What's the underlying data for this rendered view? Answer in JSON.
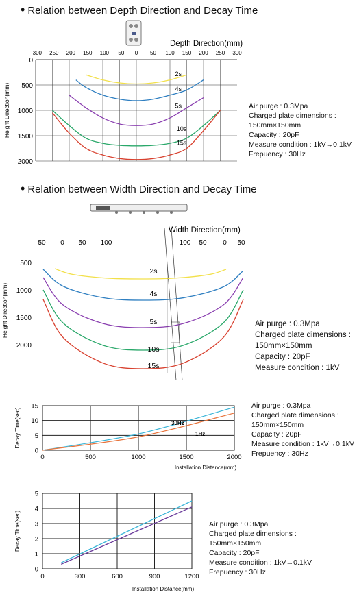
{
  "section1": {
    "title": "Relation between Depth Direction and Decay Time",
    "notes": [
      "Air purge : 0.3Mpa",
      "Charged plate dimensions :",
      "150mm×150mm",
      "Capacity : 20pF",
      "Measure condition : 1kV→0.1kV",
      "Frepuency : 30Hz"
    ]
  },
  "section2": {
    "title": "Relation between Width Direction and Decay Time",
    "notes": [
      "Air purge : 0.3Mpa",
      "Charged plate dimensions :",
      "150mm×150mm",
      "Capacity : 20pF",
      "Measure condition : 1kV"
    ]
  },
  "section3": {
    "notes": [
      "Air purge : 0.3Mpa",
      "Charged plate dimensions :",
      "150mm×150mm",
      "Capacity : 20pF",
      "Measure condition : 1kV→0.1kV",
      "Frepuency : 30Hz"
    ]
  },
  "section4": {
    "notes": [
      "Air purge : 0.3Mpa",
      "Charged plate dimensions :",
      "150mm×150mm",
      "Capacity : 20pF",
      "Measure condition : 1kV→0.1kV",
      "Frepuency : 30Hz"
    ]
  },
  "colors": {
    "2s": "#f2e04a",
    "4s": "#2f7fc1",
    "5s": "#8a3fb0",
    "10s": "#2aa86a",
    "15s": "#d8412f",
    "cyan": "#3ab5d8",
    "orange": "#e8743c",
    "purple": "#6a3a9a"
  },
  "chart_data": [
    {
      "type": "line",
      "xlabel": "Depth Direction(mm)",
      "ylabel": "Height Direction(mm)",
      "xlim": [
        -300,
        300
      ],
      "ylim": [
        0,
        2000
      ],
      "x_ticks": [
        -300,
        -250,
        -200,
        -150,
        -100,
        -50,
        0,
        50,
        100,
        150,
        200,
        250,
        300
      ],
      "y_ticks": [
        0,
        500,
        1000,
        1500,
        2000
      ],
      "y_inverted": true,
      "series": [
        {
          "name": "2s",
          "color_key": "2s",
          "label_x": 125,
          "label_y": 270,
          "points": [
            [
              -150,
              300
            ],
            [
              -100,
              400
            ],
            [
              -50,
              460
            ],
            [
              0,
              480
            ],
            [
              50,
              460
            ],
            [
              100,
              400
            ],
            [
              150,
              300
            ]
          ]
        },
        {
          "name": "4s",
          "color_key": "4s",
          "label_x": 125,
          "label_y": 570,
          "points": [
            [
              -180,
              400
            ],
            [
              -150,
              550
            ],
            [
              -100,
              700
            ],
            [
              -50,
              780
            ],
            [
              0,
              810
            ],
            [
              50,
              780
            ],
            [
              100,
              700
            ],
            [
              150,
              600
            ],
            [
              200,
              400
            ]
          ]
        },
        {
          "name": "5s",
          "color_key": "5s",
          "label_x": 125,
          "label_y": 900,
          "points": [
            [
              -200,
              700
            ],
            [
              -150,
              950
            ],
            [
              -100,
              1150
            ],
            [
              -50,
              1270
            ],
            [
              0,
              1300
            ],
            [
              50,
              1270
            ],
            [
              100,
              1150
            ],
            [
              150,
              950
            ],
            [
              200,
              750
            ]
          ]
        },
        {
          "name": "10s",
          "color_key": "10s",
          "label_x": 135,
          "label_y": 1350,
          "points": [
            [
              -250,
              1000
            ],
            [
              -200,
              1300
            ],
            [
              -150,
              1550
            ],
            [
              -100,
              1650
            ],
            [
              -50,
              1690
            ],
            [
              0,
              1700
            ],
            [
              50,
              1690
            ],
            [
              100,
              1650
            ],
            [
              150,
              1550
            ],
            [
              200,
              1300
            ],
            [
              250,
              1000
            ]
          ]
        },
        {
          "name": "15s",
          "color_key": "15s",
          "label_x": 135,
          "label_y": 1630,
          "points": [
            [
              -250,
              1050
            ],
            [
              -200,
              1450
            ],
            [
              -150,
              1750
            ],
            [
              -100,
              1880
            ],
            [
              -50,
              1950
            ],
            [
              0,
              1970
            ],
            [
              50,
              1950
            ],
            [
              100,
              1880
            ],
            [
              150,
              1750
            ],
            [
              200,
              1400
            ],
            [
              250,
              1000
            ]
          ]
        }
      ]
    },
    {
      "type": "line",
      "xlabel": "Width Direction(mm)",
      "ylabel": "Height Direction(mm)",
      "x_tick_labels_left": [
        "50",
        "0",
        "50",
        "100"
      ],
      "x_tick_labels_right": [
        "100",
        "50",
        "0",
        "50"
      ],
      "ylim": [
        0,
        2000
      ],
      "y_ticks": [
        500,
        1000,
        1500,
        2000
      ],
      "y_inverted": true,
      "series": [
        {
          "name": "2s",
          "color_key": "2s"
        },
        {
          "name": "4s",
          "color_key": "4s"
        },
        {
          "name": "5s",
          "color_key": "5s"
        },
        {
          "name": "10s",
          "color_key": "10s"
        },
        {
          "name": "15s",
          "color_key": "15s"
        }
      ]
    },
    {
      "type": "line",
      "xlabel": "Installation Distance(mm)",
      "ylabel": "Decay Time(sec)",
      "xlim": [
        0,
        2000
      ],
      "ylim": [
        0,
        15
      ],
      "x_ticks": [
        0,
        500,
        1000,
        1500,
        2000
      ],
      "y_ticks": [
        0,
        5,
        10,
        15
      ],
      "series": [
        {
          "name": "30Hz",
          "color_key": "cyan",
          "x": [
            0,
            1000,
            2000
          ],
          "y": [
            0,
            5.5,
            14.5
          ]
        },
        {
          "name": "1Hz",
          "color_key": "orange",
          "x": [
            0,
            1000,
            2000
          ],
          "y": [
            0,
            4.5,
            12.5
          ]
        }
      ]
    },
    {
      "type": "line",
      "xlabel": "Installation Distance(mm)",
      "ylabel": "Decay Time(sec)",
      "xlim": [
        0,
        1200
      ],
      "ylim": [
        0,
        5
      ],
      "x_ticks": [
        0,
        300,
        600,
        900,
        1200
      ],
      "y_ticks": [
        0,
        1,
        2,
        3,
        4,
        5
      ],
      "series": [
        {
          "color_key": "cyan",
          "x": [
            150,
            1200
          ],
          "y": [
            0.4,
            4.5
          ]
        },
        {
          "color_key": "purple",
          "x": [
            150,
            1200
          ],
          "y": [
            0.3,
            4.1
          ]
        }
      ]
    }
  ]
}
